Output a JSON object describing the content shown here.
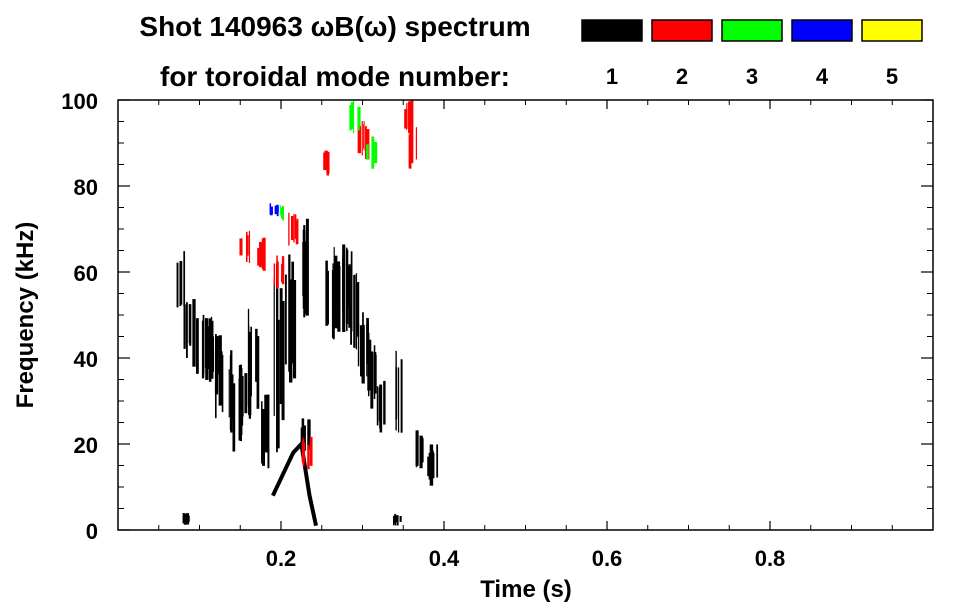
{
  "chart_data": {
    "type": "heatmap",
    "title_line1": "Shot 140963 ωB(ω) spectrum",
    "title_line2": "for toroidal mode number:",
    "xlabel": "Time (s)",
    "ylabel": "Frequency (kHz)",
    "xlim": [
      0.0,
      1.0
    ],
    "ylim": [
      0,
      100
    ],
    "x_ticks": [
      0.2,
      0.4,
      0.6,
      0.8
    ],
    "x_tick_labels": [
      "0.2",
      "0.4",
      "0.6",
      "0.8"
    ],
    "y_ticks": [
      0,
      20,
      40,
      60,
      80,
      100
    ],
    "y_tick_labels": [
      "0",
      "20",
      "40",
      "60",
      "80",
      "100"
    ],
    "grid": false,
    "legend": {
      "placement": "top-right",
      "entries": [
        {
          "label": "1",
          "color": "#000000"
        },
        {
          "label": "2",
          "color": "#ff0000"
        },
        {
          "label": "3",
          "color": "#00ff00"
        },
        {
          "label": "4",
          "color": "#0000ff"
        },
        {
          "label": "5",
          "color": "#ffff00"
        }
      ]
    },
    "series": [
      {
        "mode": 1,
        "color": "#000000",
        "blobs": [
          {
            "t": 0.075,
            "f": [
              48,
              66
            ]
          },
          {
            "t": 0.085,
            "f": [
              38,
              58
            ]
          },
          {
            "t": 0.095,
            "f": [
              36,
              54
            ]
          },
          {
            "t": 0.105,
            "f": [
              34,
              52
            ]
          },
          {
            "t": 0.115,
            "f": [
              32,
              50
            ]
          },
          {
            "t": 0.125,
            "f": [
              26,
              46
            ]
          },
          {
            "t": 0.135,
            "f": [
              22,
              42
            ]
          },
          {
            "t": 0.145,
            "f": [
              18,
              40
            ]
          },
          {
            "t": 0.155,
            "f": [
              24,
              38
            ]
          },
          {
            "t": 0.165,
            "f": [
              28,
              52
            ]
          },
          {
            "t": 0.18,
            "f": [
              14,
              34
            ]
          },
          {
            "t": 0.195,
            "f": [
              18,
              62
            ]
          },
          {
            "t": 0.21,
            "f": [
              30,
              70
            ]
          },
          {
            "t": 0.225,
            "f": [
              48,
              74
            ]
          },
          {
            "t": 0.23,
            "f": [
              18,
              26
            ]
          },
          {
            "t": 0.26,
            "f": [
              44,
              64
            ]
          },
          {
            "t": 0.27,
            "f": [
              40,
              68
            ]
          },
          {
            "t": 0.28,
            "f": [
              46,
              66
            ]
          },
          {
            "t": 0.29,
            "f": [
              42,
              60
            ]
          },
          {
            "t": 0.3,
            "f": [
              34,
              52
            ]
          },
          {
            "t": 0.31,
            "f": [
              28,
              46
            ]
          },
          {
            "t": 0.32,
            "f": [
              22,
              36
            ]
          },
          {
            "t": 0.345,
            "f": [
              20,
              42
            ]
          },
          {
            "t": 0.37,
            "f": [
              14,
              24
            ]
          },
          {
            "t": 0.385,
            "f": [
              10,
              20
            ]
          },
          {
            "t": 0.08,
            "f": [
              1,
              4
            ]
          },
          {
            "t": 0.34,
            "f": [
              1,
              4
            ]
          }
        ],
        "ridges": [
          {
            "t": [
              0.19,
              0.205,
              0.215,
              0.225,
              0.235,
              0.243
            ],
            "f": [
              8,
              14,
              18,
              20,
              8,
              1
            ]
          }
        ]
      },
      {
        "mode": 2,
        "color": "#ff0000",
        "blobs": [
          {
            "t": 0.155,
            "f": [
              62,
              70
            ]
          },
          {
            "t": 0.175,
            "f": [
              60,
              68
            ]
          },
          {
            "t": 0.195,
            "f": [
              56,
              64
            ]
          },
          {
            "t": 0.215,
            "f": [
              66,
              74
            ]
          },
          {
            "t": 0.255,
            "f": [
              82,
              90
            ]
          },
          {
            "t": 0.3,
            "f": [
              86,
              96
            ]
          },
          {
            "t": 0.355,
            "f": [
              92,
              100
            ]
          },
          {
            "t": 0.36,
            "f": [
              84,
              94
            ]
          },
          {
            "t": 0.23,
            "f": [
              14,
              22
            ]
          }
        ]
      },
      {
        "mode": 3,
        "color": "#00ff00",
        "blobs": [
          {
            "t": 0.198,
            "f": [
              72,
              76
            ]
          },
          {
            "t": 0.29,
            "f": [
              92,
              100
            ]
          },
          {
            "t": 0.31,
            "f": [
              84,
              92
            ]
          }
        ]
      },
      {
        "mode": 4,
        "color": "#0000ff",
        "blobs": [
          {
            "t": 0.192,
            "f": [
              73,
              76
            ]
          }
        ]
      },
      {
        "mode": 5,
        "color": "#ffff00",
        "blobs": []
      }
    ]
  }
}
